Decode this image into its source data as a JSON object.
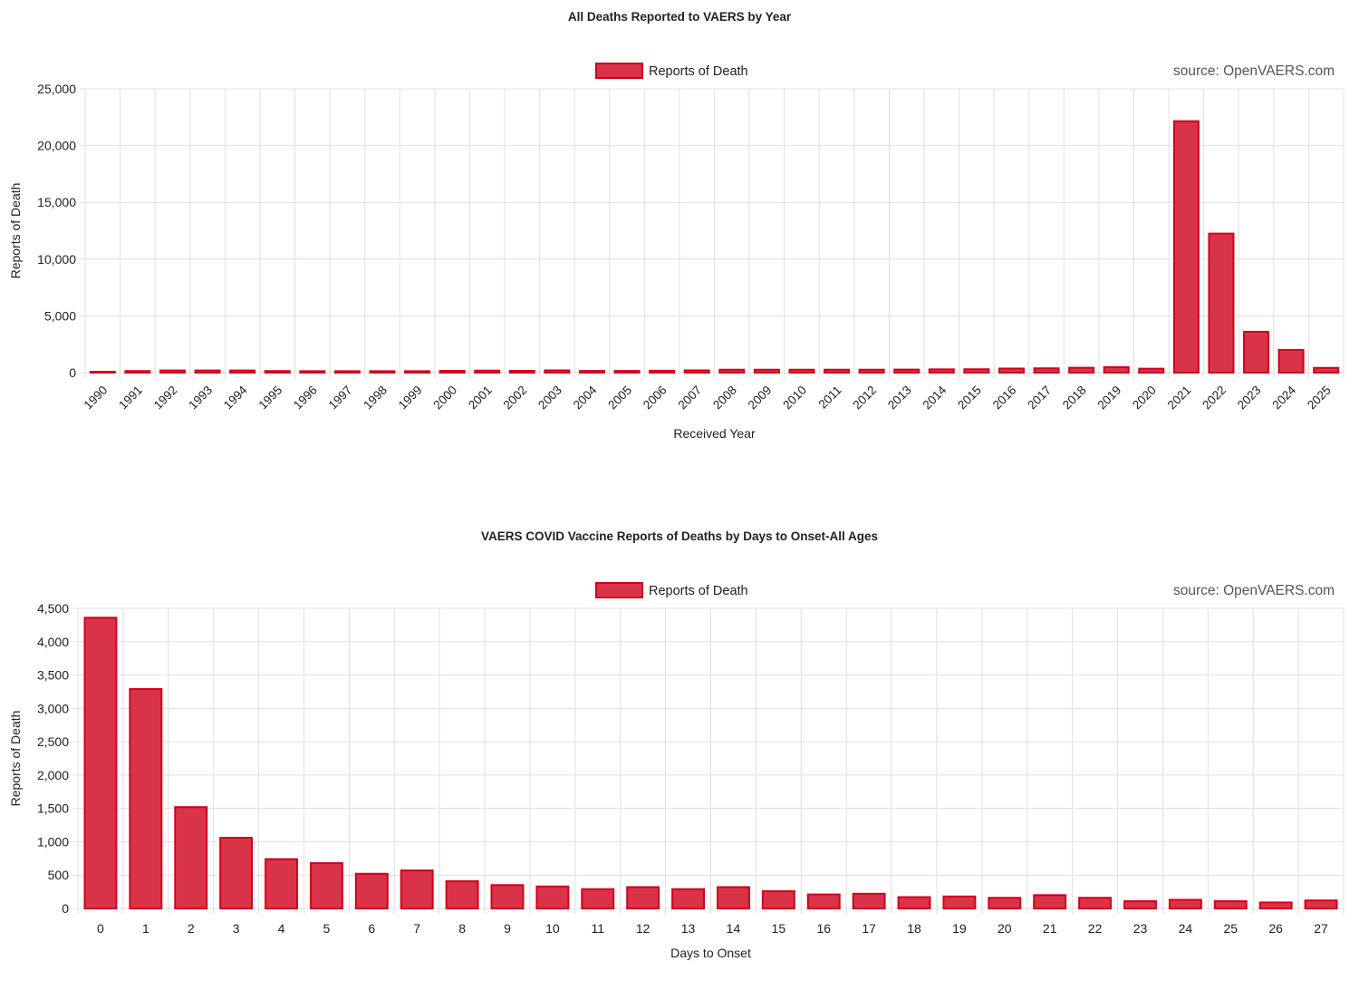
{
  "colors": {
    "bar_fill": "#d9334a",
    "bar_stroke": "#d0021b",
    "grid": "#e0e0e0",
    "text": "#222222",
    "source_text": "#555555"
  },
  "chart_data": [
    {
      "type": "bar",
      "title": "All Deaths Reported to VAERS by Year",
      "legend": {
        "label": "Reports of Death",
        "position": "top"
      },
      "source": "source: OpenVAERS.com",
      "xlabel": "Received Year",
      "ylabel": "Reports of Death",
      "ylim": [
        0,
        25000
      ],
      "yticks": [
        0,
        5000,
        10000,
        15000,
        20000,
        25000
      ],
      "ytick_labels": [
        "0",
        "5,000",
        "10,000",
        "15,000",
        "20,000",
        "25,000"
      ],
      "x_tick_rotation": -45,
      "grid": true,
      "categories": [
        "1990",
        "1991",
        "1992",
        "1993",
        "1994",
        "1995",
        "1996",
        "1997",
        "1998",
        "1999",
        "2000",
        "2001",
        "2002",
        "2003",
        "2004",
        "2005",
        "2006",
        "2007",
        "2008",
        "2009",
        "2010",
        "2011",
        "2012",
        "2013",
        "2014",
        "2015",
        "2016",
        "2017",
        "2018",
        "2019",
        "2020",
        "2021",
        "2022",
        "2023",
        "2024",
        "2025"
      ],
      "series": [
        {
          "name": "Reports of Death",
          "values": [
            60,
            140,
            190,
            190,
            190,
            140,
            130,
            130,
            130,
            130,
            160,
            180,
            160,
            200,
            150,
            150,
            170,
            200,
            260,
            260,
            260,
            260,
            260,
            270,
            290,
            300,
            360,
            380,
            430,
            480,
            350,
            22150,
            12250,
            3600,
            2000,
            420
          ]
        }
      ]
    },
    {
      "type": "bar",
      "title": "VAERS COVID Vaccine Reports of Deaths by Days to Onset-All Ages",
      "legend": {
        "label": "Reports of Death",
        "position": "top"
      },
      "source": "source: OpenVAERS.com",
      "xlabel": "Days to Onset",
      "ylabel": "Reports of Death",
      "ylim": [
        0,
        4500
      ],
      "yticks": [
        0,
        500,
        1000,
        1500,
        2000,
        2500,
        3000,
        3500,
        4000,
        4500
      ],
      "ytick_labels": [
        "0",
        "500",
        "1,000",
        "1,500",
        "2,000",
        "2,500",
        "3,000",
        "3,500",
        "4,000",
        "4,500"
      ],
      "x_tick_rotation": 0,
      "grid": true,
      "categories": [
        "0",
        "1",
        "2",
        "3",
        "4",
        "5",
        "6",
        "7",
        "8",
        "9",
        "10",
        "11",
        "12",
        "13",
        "14",
        "15",
        "16",
        "17",
        "18",
        "19",
        "20",
        "21",
        "22",
        "23",
        "24",
        "25",
        "26",
        "27"
      ],
      "series": [
        {
          "name": "Reports of Death",
          "values": [
            4360,
            3290,
            1520,
            1060,
            740,
            680,
            520,
            570,
            410,
            350,
            330,
            290,
            320,
            290,
            320,
            260,
            210,
            220,
            170,
            180,
            160,
            200,
            160,
            110,
            130,
            110,
            90,
            120
          ]
        }
      ]
    }
  ]
}
